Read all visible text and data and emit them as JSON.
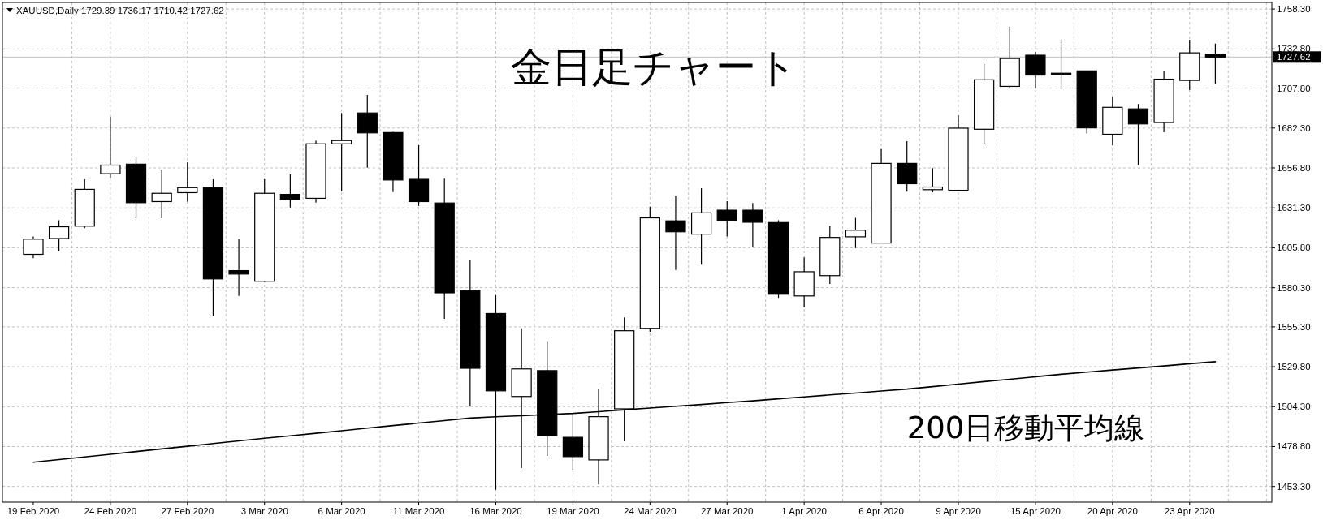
{
  "chart_data": {
    "type": "candlestick",
    "title": "金日足チャート",
    "annotations": [
      "XAUUSD,Daily  1729.39 1736.17 1710.42 1727.62"
    ],
    "categories": [
      "19 Feb 2020",
      null,
      null,
      "24 Feb 2020",
      null,
      null,
      "27 Feb 2020",
      null,
      null,
      "3 Mar 2020",
      null,
      null,
      "6 Mar 2020",
      null,
      null,
      "11 Mar 2020",
      null,
      null,
      "16 Mar 2020",
      null,
      null,
      "19 Mar 2020",
      null,
      null,
      "24 Mar 2020",
      null,
      null,
      "27 Mar 2020",
      null,
      null,
      "1 Apr 2020",
      null,
      null,
      "6 Apr 2020",
      null,
      null,
      "9 Apr 2020",
      null,
      null,
      "15 Apr 2020",
      null,
      null,
      "20 Apr 2020",
      null,
      null,
      "23 Apr 2020",
      null
    ],
    "ohlc": [
      [
        1601.6,
        1613.0,
        1599.2,
        1611.3
      ],
      [
        1611.7,
        1623.4,
        1603.5,
        1619.2
      ],
      [
        1619.6,
        1649.5,
        1618.3,
        1643.1
      ],
      [
        1653.1,
        1689.6,
        1650.5,
        1658.6
      ],
      [
        1659.2,
        1663.9,
        1624.7,
        1634.6
      ],
      [
        1635.3,
        1655.2,
        1624.7,
        1640.6
      ],
      [
        1641.0,
        1660.3,
        1635.1,
        1644.2
      ],
      [
        1644.2,
        1649.5,
        1562.5,
        1585.9
      ],
      [
        1591.2,
        1611.3,
        1575.0,
        1589.0
      ],
      [
        1584.4,
        1649.5,
        1584.0,
        1640.6
      ],
      [
        1639.9,
        1652.7,
        1631.5,
        1636.8
      ],
      [
        1637.4,
        1674.3,
        1634.6,
        1672.2
      ],
      [
        1672.2,
        1691.9,
        1641.9,
        1674.3
      ],
      [
        1691.9,
        1703.4,
        1656.9,
        1679.2
      ],
      [
        1679.4,
        1679.8,
        1641.4,
        1649.1
      ],
      [
        1649.5,
        1671.3,
        1632.5,
        1635.3
      ],
      [
        1634.4,
        1649.9,
        1560.4,
        1577.0
      ],
      [
        1578.4,
        1598.2,
        1504.4,
        1528.8
      ],
      [
        1563.8,
        1575.5,
        1451.2,
        1514.4
      ],
      [
        1510.8,
        1554.3,
        1465.0,
        1528.4
      ],
      [
        1527.3,
        1546.2,
        1472.8,
        1485.8
      ],
      [
        1484.7,
        1500.0,
        1463.9,
        1472.4
      ],
      [
        1470.3,
        1515.7,
        1454.6,
        1497.9
      ],
      [
        1502.9,
        1561.3,
        1482.1,
        1552.8
      ],
      [
        1554.3,
        1632.1,
        1552.1,
        1624.9
      ],
      [
        1623.0,
        1639.1,
        1591.6,
        1616.0
      ],
      [
        1614.5,
        1643.8,
        1595.0,
        1628.1
      ],
      [
        1629.8,
        1635.5,
        1613.0,
        1623.2
      ],
      [
        1629.8,
        1634.4,
        1606.4,
        1622.1
      ],
      [
        1621.9,
        1623.4,
        1573.8,
        1576.1
      ],
      [
        1575.0,
        1599.6,
        1567.8,
        1590.5
      ],
      [
        1588.0,
        1619.8,
        1582.7,
        1612.4
      ],
      [
        1612.8,
        1624.9,
        1605.6,
        1617.0
      ],
      [
        1608.8,
        1668.8,
        1608.6,
        1659.7
      ],
      [
        1659.7,
        1673.9,
        1641.6,
        1646.7
      ],
      [
        1642.9,
        1656.7,
        1641.2,
        1644.6
      ],
      [
        1642.5,
        1690.4,
        1642.3,
        1682.2
      ],
      [
        1681.5,
        1723.3,
        1672.4,
        1713.1
      ],
      [
        1708.9,
        1747.1,
        1708.2,
        1726.7
      ],
      [
        1728.8,
        1730.9,
        1707.4,
        1716.1
      ],
      [
        1717.3,
        1738.8,
        1707.2,
        1717.1
      ],
      [
        1718.8,
        1718.8,
        1678.8,
        1682.4
      ],
      [
        1678.3,
        1702.3,
        1671.3,
        1695.5
      ],
      [
        1694.5,
        1697.6,
        1658.6,
        1684.9
      ],
      [
        1685.8,
        1718.4,
        1679.6,
        1713.5
      ],
      [
        1712.7,
        1738.6,
        1706.5,
        1730.3
      ],
      [
        1729.39,
        1736.17,
        1710.42,
        1727.62
      ]
    ],
    "series": [
      {
        "type": "line",
        "name": "200日移動平均線",
        "color": "#000000",
        "values": [
          1468.8,
          1470.5,
          1472.2,
          1473.9,
          1475.6,
          1477.3,
          1479.0,
          1480.7,
          1482.4,
          1484.1,
          1485.7,
          1487.3,
          1488.9,
          1490.6,
          1492.2,
          1493.8,
          1495.4,
          1497.0,
          1497.8,
          1498.5,
          1499.3,
          1500.0,
          1501.1,
          1502.3,
          1503.4,
          1504.6,
          1505.7,
          1506.9,
          1508.0,
          1509.3,
          1510.5,
          1511.8,
          1513.0,
          1514.3,
          1515.5,
          1517.1,
          1518.7,
          1520.3,
          1521.8,
          1523.4,
          1525.0,
          1526.3,
          1527.7,
          1529.0,
          1530.3,
          1531.7,
          1533.0
        ]
      }
    ],
    "ylim": [
      1443.3,
      1762.5
    ],
    "yticks": [
      {
        "value": 1758.3,
        "label": "1758.30"
      },
      {
        "value": 1732.8,
        "label": "1732.80"
      },
      {
        "value": 1707.8,
        "label": "1707.80"
      },
      {
        "value": 1682.3,
        "label": "1682.30"
      },
      {
        "value": 1656.8,
        "label": "1656.80"
      },
      {
        "value": 1631.3,
        "label": "1631.30"
      },
      {
        "value": 1605.8,
        "label": "1605.80"
      },
      {
        "value": 1580.3,
        "label": "1580.30"
      },
      {
        "value": 1555.3,
        "label": "1555.30"
      },
      {
        "value": 1529.8,
        "label": "1529.80"
      },
      {
        "value": 1504.3,
        "label": "1504.30"
      },
      {
        "value": 1478.8,
        "label": "1478.80"
      },
      {
        "value": 1453.3,
        "label": "1453.30"
      }
    ],
    "ref_lines": [
      {
        "axis": "y",
        "value": 1727.62,
        "label": "1727.62",
        "color": "#c0c0c0"
      }
    ],
    "grid": true
  }
}
